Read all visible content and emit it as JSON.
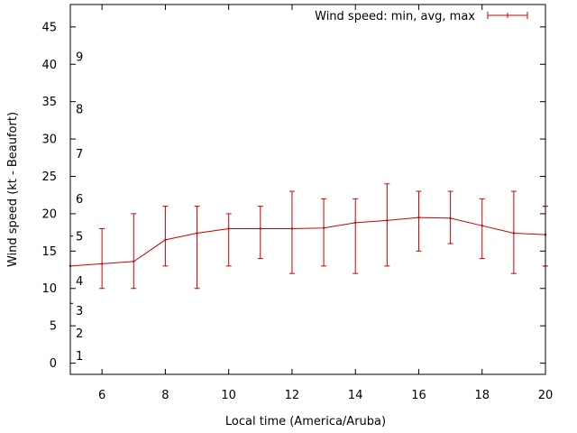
{
  "chart_data": {
    "type": "line",
    "xlabel": "Local time (America/Aruba)",
    "ylabel": "Wind speed (kt - Beaufort)",
    "xlim": [
      5,
      20
    ],
    "ylim": [
      -1.5,
      48
    ],
    "x_ticks": [
      6,
      8,
      10,
      12,
      14,
      16,
      18,
      20
    ],
    "y_ticks": [
      0,
      5,
      10,
      15,
      20,
      25,
      30,
      35,
      40,
      45
    ],
    "beaufort_labels": [
      {
        "label": "1",
        "value": 1
      },
      {
        "label": "2",
        "value": 4
      },
      {
        "label": "3",
        "value": 7
      },
      {
        "label": "4",
        "value": 11
      },
      {
        "label": "5",
        "value": 17
      },
      {
        "label": "6",
        "value": 22
      },
      {
        "label": "7",
        "value": 28
      },
      {
        "label": "8",
        "value": 34
      },
      {
        "label": "9",
        "value": 41
      }
    ],
    "beaufort_edge_marks": [
      8,
      17,
      21,
      13
    ],
    "legend": {
      "label": "Wind speed: min, avg, max",
      "position": "top-right"
    },
    "series": [
      {
        "name": "Wind speed: min, avg, max",
        "color": "#cc0000",
        "points": [
          {
            "x": 5,
            "avg": 13.0,
            "min": 13,
            "max": 13
          },
          {
            "x": 6,
            "avg": 13.3,
            "min": 10,
            "max": 18
          },
          {
            "x": 7,
            "avg": 13.6,
            "min": 10,
            "max": 20
          },
          {
            "x": 8,
            "avg": 16.5,
            "min": 13,
            "max": 21
          },
          {
            "x": 9,
            "avg": 17.4,
            "min": 10,
            "max": 21
          },
          {
            "x": 10,
            "avg": 18.0,
            "min": 13,
            "max": 20
          },
          {
            "x": 11,
            "avg": 18.0,
            "min": 14,
            "max": 21
          },
          {
            "x": 12,
            "avg": 18.0,
            "min": 12,
            "max": 23
          },
          {
            "x": 13,
            "avg": 18.1,
            "min": 13,
            "max": 22
          },
          {
            "x": 14,
            "avg": 18.8,
            "min": 12,
            "max": 22
          },
          {
            "x": 15,
            "avg": 19.1,
            "min": 13,
            "max": 24
          },
          {
            "x": 16,
            "avg": 19.5,
            "min": 15,
            "max": 23
          },
          {
            "x": 17,
            "avg": 19.4,
            "min": 16,
            "max": 23
          },
          {
            "x": 18,
            "avg": 18.4,
            "min": 14,
            "max": 22
          },
          {
            "x": 19,
            "avg": 17.4,
            "min": 12,
            "max": 23
          },
          {
            "x": 20,
            "avg": 17.2,
            "min": 13,
            "max": 21
          }
        ]
      }
    ]
  }
}
